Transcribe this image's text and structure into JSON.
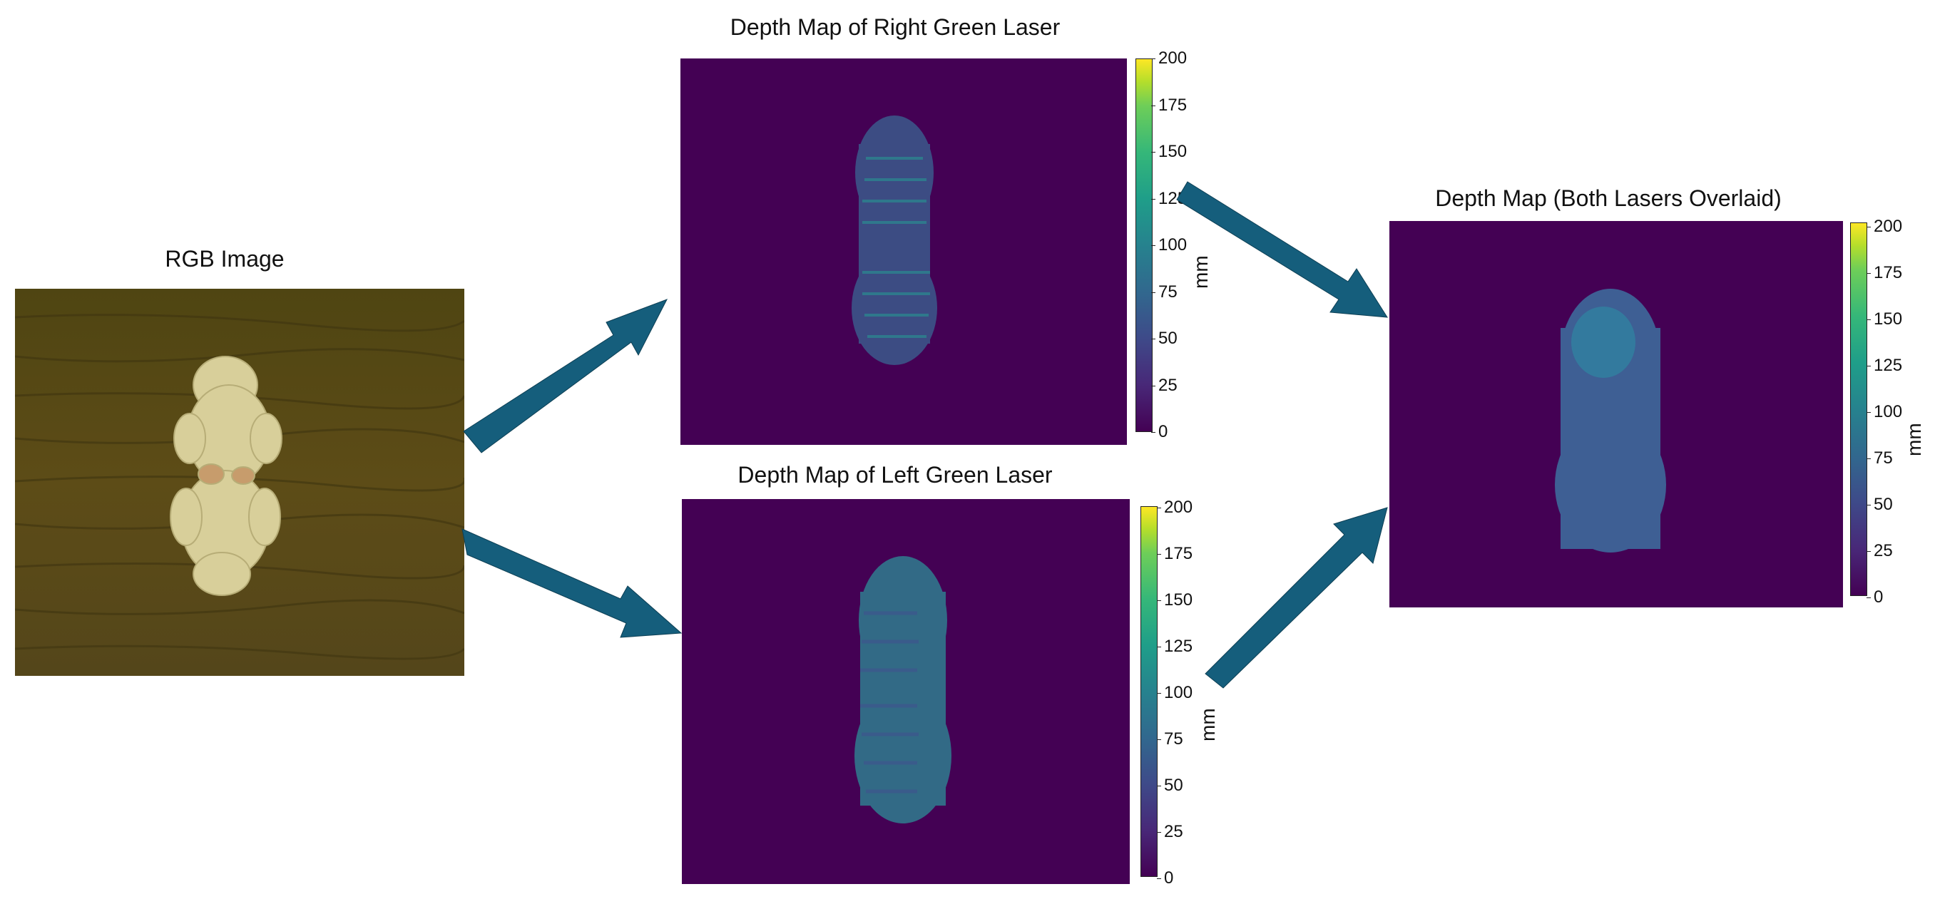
{
  "panels": {
    "rgb": {
      "title": "RGB Image"
    },
    "right": {
      "title": "Depth Map of Right Green Laser"
    },
    "left": {
      "title": "Depth Map of Left Green Laser"
    },
    "both": {
      "title": "Depth Map (Both Lasers Overlaid)"
    }
  },
  "colorbar": {
    "unit": "mm",
    "ticks": [
      "0",
      "25",
      "50",
      "75",
      "100",
      "125",
      "150",
      "175",
      "200"
    ],
    "range": [
      0,
      200
    ]
  },
  "colors": {
    "background": "#440154",
    "arrow": "#155e7c",
    "wood": "#5a4a14",
    "subject": "#d8cf9a"
  }
}
